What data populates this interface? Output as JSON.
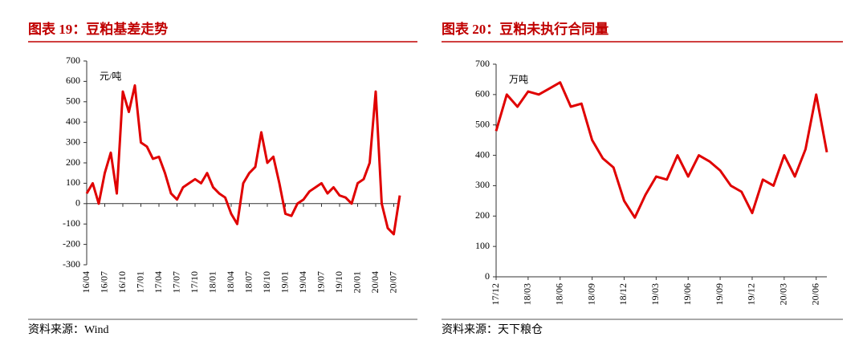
{
  "chart_data": [
    {
      "type": "line",
      "title": "图表 19：豆粕基差走势",
      "unit_label": "元/吨",
      "source": "资料来源：Wind",
      "color": "#e00000",
      "categories": [
        "16/04",
        null,
        null,
        "16/07",
        null,
        null,
        "16/10",
        null,
        null,
        "17/01",
        null,
        null,
        "17/04",
        null,
        null,
        "17/07",
        null,
        null,
        "17/10",
        null,
        null,
        "18/01",
        null,
        null,
        "18/04",
        null,
        null,
        "18/07",
        null,
        null,
        "18/10",
        null,
        null,
        "19/01",
        null,
        null,
        "19/04",
        null,
        null,
        "19/07",
        null,
        null,
        "19/10",
        null,
        null,
        "20/01",
        null,
        null,
        "20/04",
        null,
        null,
        "20/07",
        null
      ],
      "values": [
        50,
        100,
        0,
        150,
        250,
        50,
        550,
        450,
        580,
        300,
        280,
        220,
        230,
        150,
        50,
        20,
        80,
        100,
        120,
        100,
        150,
        80,
        50,
        30,
        -50,
        -100,
        100,
        150,
        180,
        350,
        200,
        230,
        100,
        -50,
        -60,
        0,
        20,
        60,
        80,
        100,
        50,
        80,
        40,
        30,
        0,
        100,
        120,
        200,
        550,
        0,
        -120,
        -150,
        40
      ],
      "ylim": [
        -300,
        700
      ],
      "yticks": [
        -300,
        -200,
        -100,
        0,
        100,
        200,
        300,
        400,
        500,
        600,
        700
      ]
    },
    {
      "type": "line",
      "title": "图表 20：豆粕未执行合同量",
      "unit_label": "万吨",
      "source": "资料来源：天下粮仓",
      "color": "#e00000",
      "categories": [
        "17/12",
        null,
        null,
        "18/03",
        null,
        null,
        "18/06",
        null,
        null,
        "18/09",
        null,
        null,
        "18/12",
        null,
        null,
        "19/03",
        null,
        null,
        "19/06",
        null,
        null,
        "19/09",
        null,
        null,
        "19/12",
        null,
        null,
        "20/03",
        null,
        null,
        "20/06",
        null
      ],
      "values": [
        480,
        600,
        560,
        610,
        600,
        620,
        640,
        560,
        570,
        450,
        390,
        360,
        250,
        195,
        270,
        330,
        320,
        400,
        330,
        400,
        380,
        350,
        300,
        280,
        210,
        320,
        300,
        400,
        330,
        420,
        600,
        410
      ],
      "ylim": [
        0,
        700
      ],
      "yticks": [
        0,
        100,
        200,
        300,
        400,
        500,
        600,
        700
      ]
    }
  ]
}
